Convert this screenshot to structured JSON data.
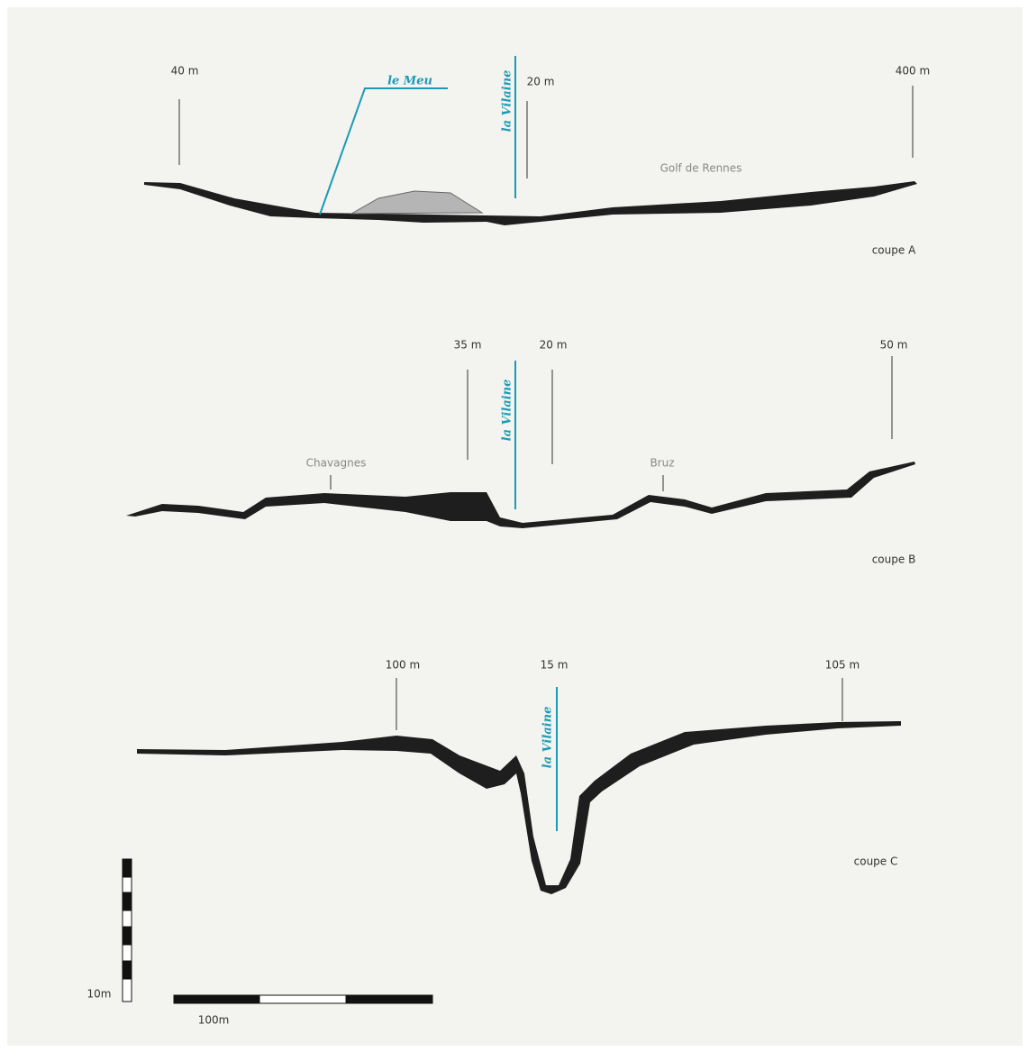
{
  "sections": [
    {
      "label": "coupe A",
      "markers": [
        "40 m",
        "20 m",
        "400 m"
      ],
      "places": [
        "Golf de Rennes"
      ],
      "rivers": [
        "le Meu",
        "la Vilaine"
      ]
    },
    {
      "label": "coupe B",
      "markers": [
        "35 m",
        "20 m",
        "50 m"
      ],
      "places": [
        "Chavagnes",
        "Bruz"
      ],
      "rivers": [
        "la Vilaine"
      ]
    },
    {
      "label": "coupe C",
      "markers": [
        "100 m",
        "15 m",
        "105 m"
      ],
      "places": [],
      "rivers": [
        "la Vilaine"
      ]
    }
  ],
  "scale": {
    "vertical": "10m",
    "horizontal": "100m"
  }
}
